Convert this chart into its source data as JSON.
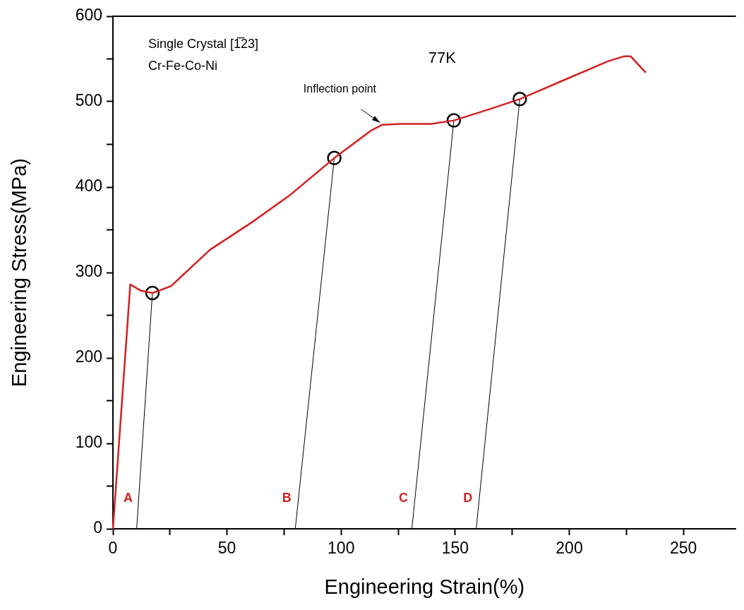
{
  "chart_data": {
    "type": "line",
    "title": "77K",
    "xlabel": "Engineering Strain(%)",
    "ylabel": "Engineering Stress(MPa)",
    "xlim": [
      0,
      273
    ],
    "ylim": [
      0,
      600
    ],
    "xticks": [
      0,
      {
        "value": 25,
        "label": null
      },
      50,
      {
        "value": 75,
        "label": null
      },
      100,
      {
        "value": 125,
        "label": null
      },
      150,
      {
        "value": 175,
        "label": null
      },
      200,
      {
        "value": 225,
        "label": null
      },
      250
    ],
    "yticks": [
      0,
      {
        "value": 50,
        "label": null
      },
      100,
      {
        "value": 150,
        "label": null
      },
      200,
      {
        "value": 250,
        "label": null
      },
      300,
      {
        "value": 350,
        "label": null
      },
      400,
      {
        "value": 450,
        "label": null
      },
      500,
      {
        "value": 550,
        "label": null
      },
      600
    ],
    "grid": false,
    "legend": false,
    "marker": "none",
    "line_style": "solid",
    "series": [
      {
        "color": "#d42020",
        "x": [
          0,
          7.6,
          12,
          17.3,
          25.4,
          42.7,
          61,
          77.3,
          97,
          113,
          118,
          126,
          139.4,
          149.4,
          164.8,
          178.3,
          197.4,
          216.7,
          223.8,
          226.9,
          233.5
        ],
        "values": [
          0,
          286,
          279,
          276,
          284,
          327,
          359,
          390,
          434,
          466,
          473,
          474,
          474,
          478,
          491,
          503,
          525,
          547,
          553,
          553,
          534
        ]
      },
      {
        "color": "#000000",
        "x": [
          10.4,
          17.3
        ],
        "values": [
          0,
          276
        ]
      },
      {
        "color": "#000000",
        "x": [
          79.9,
          97
        ],
        "values": [
          0,
          434
        ]
      },
      {
        "color": "#000000",
        "x": [
          131,
          149.4
        ],
        "values": [
          0,
          478
        ]
      },
      {
        "color": "#000000",
        "x": [
          159.2,
          178.3
        ],
        "values": [
          0,
          503
        ]
      },
      {
        "type": "scatter",
        "marker": "circle",
        "color": "#000000",
        "x": [
          17.3,
          97,
          149.4,
          178.3
        ],
        "values": [
          276,
          434,
          478,
          503
        ]
      }
    ],
    "annotations": [
      "Single Crystal [1̅23]",
      "Cr-Fe-Co-Ni",
      {
        "text": "Inflection point",
        "x": 118,
        "y": 473
      },
      {
        "text": "A",
        "x": 10.4,
        "y": 0
      },
      {
        "text": "B",
        "x": 79.9,
        "y": 0
      },
      {
        "text": "C",
        "x": 131,
        "y": 0
      },
      {
        "text": "D",
        "x": 159.2,
        "y": 0
      }
    ]
  }
}
